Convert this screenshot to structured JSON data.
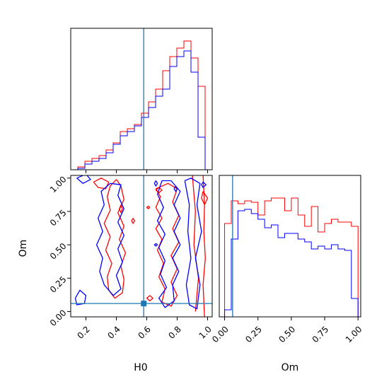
{
  "chart_data": {
    "type": "corner",
    "parameters": [
      "H0",
      "Om"
    ],
    "truth": {
      "H0": 0.58,
      "Om": 0.06
    },
    "colors": {
      "series_a": "#ff0000",
      "series_b": "#0000ff",
      "truth": "#1f77b4"
    },
    "h0_hist": {
      "xlim": [
        0.1,
        1.03
      ],
      "bin_edges": [
        0.1,
        0.1465,
        0.193,
        0.2395,
        0.286,
        0.3325,
        0.379,
        0.4255,
        0.472,
        0.5185,
        0.565,
        0.6115,
        0.658,
        0.7045,
        0.751,
        0.7975,
        0.844,
        0.8905,
        0.937,
        0.9835,
        1.03
      ],
      "red": [
        0.0,
        0.02,
        0.06,
        0.08,
        0.1,
        0.14,
        0.19,
        0.27,
        0.29,
        0.32,
        0.4,
        0.48,
        0.57,
        0.7,
        0.8,
        0.86,
        0.91,
        0.79,
        0.59,
        0.0
      ],
      "blue": [
        0.0,
        0.01,
        0.04,
        0.06,
        0.08,
        0.12,
        0.18,
        0.24,
        0.27,
        0.31,
        0.37,
        0.44,
        0.52,
        0.57,
        0.73,
        0.8,
        0.84,
        0.69,
        0.23,
        0.0
      ],
      "xticks": [
        "0.2",
        "0.4",
        "0.6",
        "0.8",
        "1.0"
      ]
    },
    "om_hist": {
      "xlim": [
        -0.04,
        1.02
      ],
      "bin_edges": [
        0.0,
        0.05,
        0.1,
        0.15,
        0.2,
        0.25,
        0.3,
        0.35,
        0.4,
        0.45,
        0.5,
        0.55,
        0.6,
        0.65,
        0.7,
        0.75,
        0.8,
        0.85,
        0.9,
        0.95,
        1.0
      ],
      "red": [
        0.66,
        0.82,
        0.8,
        0.82,
        0.81,
        0.72,
        0.82,
        0.84,
        0.84,
        0.75,
        0.84,
        0.72,
        0.64,
        0.78,
        0.6,
        0.66,
        0.69,
        0.67,
        0.67,
        0.64
      ],
      "blue": [
        0.05,
        0.55,
        0.75,
        0.76,
        0.73,
        0.69,
        0.63,
        0.65,
        0.56,
        0.59,
        0.59,
        0.55,
        0.53,
        0.48,
        0.5,
        0.48,
        0.51,
        0.48,
        0.47,
        0.13
      ],
      "xticks": [
        "0.00",
        "0.25",
        "0.50",
        "0.75",
        "1.00"
      ]
    },
    "joint": {
      "xlim": [
        0.1,
        1.03
      ],
      "ylim": [
        -0.04,
        1.02
      ],
      "xticks": [
        "0.2",
        "0.4",
        "0.6",
        "0.8",
        "1.0"
      ],
      "yticks": [
        "0.00",
        "0.25",
        "0.50",
        "0.75",
        "1.00"
      ],
      "xlabel": "H0",
      "ylabel": "Om",
      "red_contours": [
        [
          [
            0.4,
            0.99
          ],
          [
            0.36,
            0.94
          ],
          [
            0.34,
            0.86
          ],
          [
            0.36,
            0.76
          ],
          [
            0.32,
            0.66
          ],
          [
            0.36,
            0.56
          ],
          [
            0.33,
            0.46
          ],
          [
            0.37,
            0.36
          ],
          [
            0.34,
            0.26
          ],
          [
            0.35,
            0.16
          ],
          [
            0.39,
            0.1
          ],
          [
            0.44,
            0.14
          ],
          [
            0.45,
            0.24
          ],
          [
            0.43,
            0.34
          ],
          [
            0.46,
            0.44
          ],
          [
            0.42,
            0.54
          ],
          [
            0.45,
            0.64
          ],
          [
            0.41,
            0.74
          ],
          [
            0.45,
            0.84
          ],
          [
            0.43,
            0.94
          ],
          [
            0.4,
            0.99
          ]
        ],
        [
          [
            0.25,
            0.97
          ],
          [
            0.3,
            1.0
          ],
          [
            0.35,
            0.97
          ],
          [
            0.33,
            0.92
          ],
          [
            0.28,
            0.93
          ],
          [
            0.25,
            0.97
          ]
        ],
        [
          [
            0.66,
            0.92
          ],
          [
            0.69,
            0.86
          ],
          [
            0.66,
            0.78
          ],
          [
            0.7,
            0.7
          ],
          [
            0.66,
            0.62
          ],
          [
            0.7,
            0.54
          ],
          [
            0.67,
            0.46
          ],
          [
            0.71,
            0.36
          ],
          [
            0.68,
            0.26
          ],
          [
            0.72,
            0.17
          ],
          [
            0.7,
            0.07
          ],
          [
            0.76,
            0.04
          ],
          [
            0.8,
            0.12
          ],
          [
            0.76,
            0.22
          ],
          [
            0.8,
            0.32
          ],
          [
            0.76,
            0.42
          ],
          [
            0.81,
            0.52
          ],
          [
            0.77,
            0.62
          ],
          [
            0.81,
            0.72
          ],
          [
            0.77,
            0.82
          ],
          [
            0.8,
            0.92
          ],
          [
            0.74,
            0.96
          ],
          [
            0.66,
            0.92
          ]
        ],
        [
          [
            0.9,
            1.02
          ],
          [
            0.92,
            0.75
          ],
          [
            0.91,
            0.5
          ],
          [
            0.94,
            0.25
          ],
          [
            0.92,
            0.0
          ]
        ],
        [
          [
            0.97,
            1.02
          ],
          [
            0.98,
            0.8
          ],
          [
            0.975,
            0.6
          ],
          [
            0.985,
            0.4
          ],
          [
            0.97,
            0.2
          ],
          [
            0.98,
            -0.04
          ]
        ],
        [
          [
            0.43,
            0.8
          ],
          [
            0.44,
            0.77
          ],
          [
            0.43,
            0.74
          ],
          [
            0.42,
            0.77
          ],
          [
            0.43,
            0.8
          ]
        ],
        [
          [
            0.51,
            0.7
          ],
          [
            0.52,
            0.68
          ],
          [
            0.51,
            0.66
          ],
          [
            0.5,
            0.68
          ],
          [
            0.51,
            0.7
          ]
        ],
        [
          [
            0.68,
            0.93
          ],
          [
            0.7,
            0.91
          ],
          [
            0.68,
            0.89
          ],
          [
            0.66,
            0.91
          ],
          [
            0.68,
            0.93
          ]
        ],
        [
          [
            0.61,
            0.79
          ],
          [
            0.62,
            0.78
          ],
          [
            0.61,
            0.77
          ],
          [
            0.6,
            0.78
          ],
          [
            0.61,
            0.79
          ]
        ],
        [
          [
            0.62,
            0.12
          ],
          [
            0.64,
            0.1
          ],
          [
            0.62,
            0.08
          ],
          [
            0.6,
            0.1
          ],
          [
            0.62,
            0.12
          ]
        ],
        [
          [
            0.97,
            0.9
          ],
          [
            1.0,
            0.85
          ],
          [
            0.98,
            0.8
          ],
          [
            0.96,
            0.85
          ],
          [
            0.97,
            0.9
          ]
        ]
      ],
      "blue_contours": [
        [
          [
            0.36,
            0.96
          ],
          [
            0.3,
            0.9
          ],
          [
            0.32,
            0.8
          ],
          [
            0.28,
            0.7
          ],
          [
            0.31,
            0.6
          ],
          [
            0.27,
            0.5
          ],
          [
            0.31,
            0.4
          ],
          [
            0.29,
            0.3
          ],
          [
            0.32,
            0.2
          ],
          [
            0.38,
            0.12
          ],
          [
            0.43,
            0.17
          ],
          [
            0.4,
            0.27
          ],
          [
            0.44,
            0.37
          ],
          [
            0.41,
            0.47
          ],
          [
            0.45,
            0.57
          ],
          [
            0.41,
            0.67
          ],
          [
            0.45,
            0.77
          ],
          [
            0.41,
            0.87
          ],
          [
            0.43,
            0.95
          ],
          [
            0.36,
            0.96
          ]
        ],
        [
          [
            0.14,
            1.0
          ],
          [
            0.18,
            0.96
          ],
          [
            0.23,
            0.99
          ],
          [
            0.2,
            1.03
          ],
          [
            0.14,
            1.0
          ]
        ],
        [
          [
            0.13,
            0.1
          ],
          [
            0.16,
            0.16
          ],
          [
            0.2,
            0.12
          ],
          [
            0.19,
            0.06
          ],
          [
            0.14,
            0.05
          ],
          [
            0.13,
            0.1
          ]
        ],
        [
          [
            0.7,
            0.98
          ],
          [
            0.67,
            0.88
          ],
          [
            0.71,
            0.78
          ],
          [
            0.67,
            0.68
          ],
          [
            0.72,
            0.58
          ],
          [
            0.68,
            0.48
          ],
          [
            0.72,
            0.38
          ],
          [
            0.69,
            0.28
          ],
          [
            0.73,
            0.18
          ],
          [
            0.68,
            0.1
          ],
          [
            0.72,
            0.03
          ],
          [
            0.78,
            0.08
          ],
          [
            0.77,
            0.2
          ],
          [
            0.81,
            0.3
          ],
          [
            0.77,
            0.4
          ],
          [
            0.82,
            0.5
          ],
          [
            0.78,
            0.6
          ],
          [
            0.82,
            0.7
          ],
          [
            0.78,
            0.8
          ],
          [
            0.82,
            0.9
          ],
          [
            0.76,
            0.98
          ],
          [
            0.7,
            0.98
          ]
        ],
        [
          [
            0.85,
            0.98
          ],
          [
            0.89,
            1.0
          ],
          [
            0.95,
            0.96
          ],
          [
            0.93,
            0.8
          ],
          [
            0.96,
            0.6
          ],
          [
            0.92,
            0.4
          ],
          [
            0.95,
            0.2
          ],
          [
            0.93,
            0.02
          ],
          [
            0.88,
            0.05
          ],
          [
            0.86,
            0.2
          ],
          [
            0.89,
            0.4
          ],
          [
            0.87,
            0.6
          ],
          [
            0.88,
            0.8
          ],
          [
            0.85,
            0.98
          ]
        ],
        [
          [
            0.66,
            0.98
          ],
          [
            0.67,
            0.96
          ],
          [
            0.66,
            0.94
          ],
          [
            0.65,
            0.96
          ],
          [
            0.66,
            0.98
          ]
        ],
        [
          [
            0.79,
            0.94
          ],
          [
            0.8,
            0.92
          ],
          [
            0.79,
            0.9
          ],
          [
            0.78,
            0.92
          ],
          [
            0.79,
            0.94
          ]
        ],
        [
          [
            0.66,
            0.51
          ],
          [
            0.67,
            0.5
          ],
          [
            0.66,
            0.49
          ],
          [
            0.65,
            0.5
          ],
          [
            0.66,
            0.51
          ]
        ],
        [
          [
            0.97,
            0.97
          ],
          [
            0.99,
            0.95
          ],
          [
            0.97,
            0.93
          ],
          [
            0.96,
            0.95
          ],
          [
            0.97,
            0.97
          ]
        ]
      ]
    }
  }
}
